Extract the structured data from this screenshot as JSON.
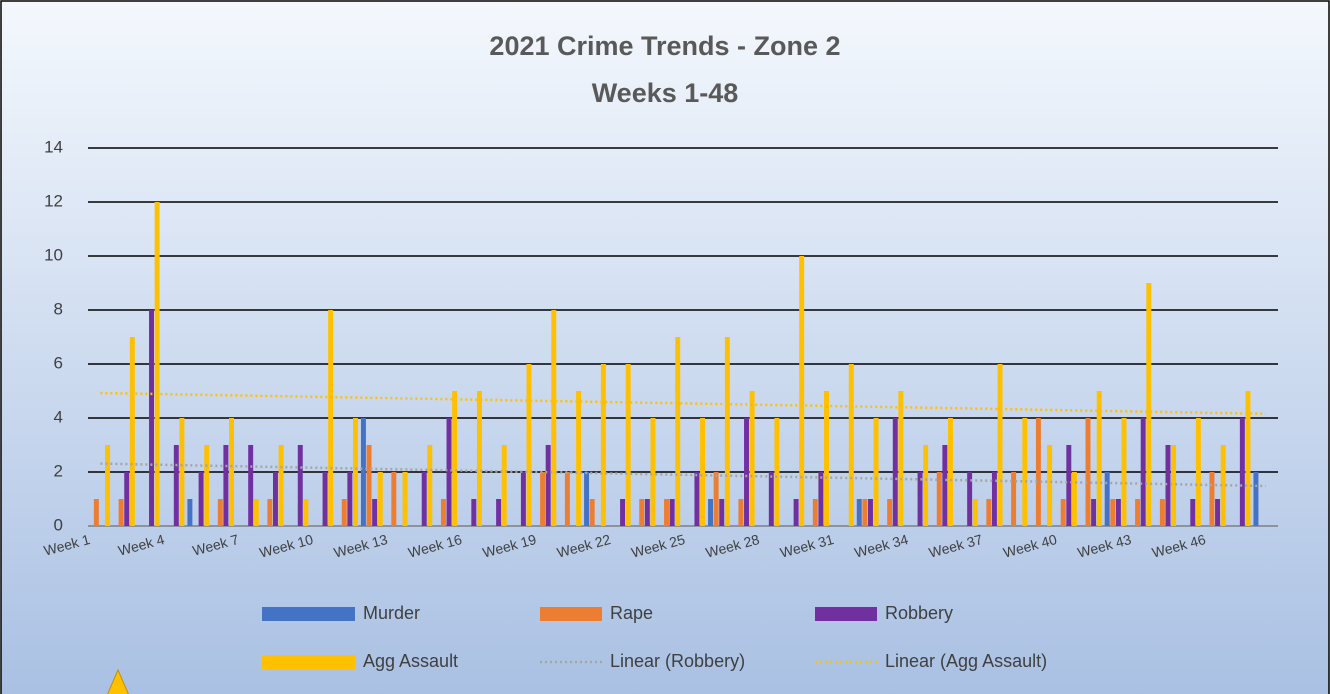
{
  "chart_data": {
    "type": "bar",
    "title": "2021 Crime Trends - Zone 2",
    "subtitle": "Weeks 1-48",
    "categories": [
      "Week 1",
      null,
      null,
      "Week 4",
      null,
      null,
      "Week 7",
      null,
      null,
      "Week 10",
      null,
      null,
      "Week 13",
      null,
      null,
      "Week 16",
      null,
      null,
      "Week 19",
      null,
      null,
      "Week 22",
      null,
      null,
      "Week 25",
      null,
      null,
      "Week 28",
      null,
      null,
      "Week 31",
      null,
      null,
      "Week 34",
      null,
      null,
      "Week 37",
      null,
      null,
      "Week 40",
      null,
      null,
      "Week 43",
      null,
      null,
      "Week 46",
      null,
      null
    ],
    "series": [
      {
        "name": "Murder",
        "color": "#4472c4",
        "values": [
          0,
          0,
          0,
          0,
          1,
          0,
          0,
          0,
          0,
          0,
          0,
          4,
          0,
          0,
          0,
          0,
          0,
          0,
          0,
          0,
          2,
          0,
          0,
          0,
          0,
          1,
          0,
          0,
          0,
          0,
          0,
          1,
          0,
          0,
          0,
          0,
          0,
          0,
          0,
          0,
          0,
          2,
          0,
          0,
          0,
          0,
          0,
          2
        ]
      },
      {
        "name": "Rape",
        "color": "#ed7d31",
        "values": [
          1,
          1,
          0,
          0,
          0,
          1,
          0,
          1,
          0,
          0,
          1,
          3,
          2,
          0,
          1,
          0,
          0,
          0,
          2,
          2,
          1,
          0,
          1,
          1,
          0,
          2,
          1,
          0,
          0,
          1,
          0,
          1,
          1,
          0,
          2,
          0,
          1,
          2,
          4,
          1,
          4,
          1,
          1,
          1,
          0,
          2,
          0,
          0
        ]
      },
      {
        "name": "Robbery",
        "color": "#7030a0",
        "values": [
          0,
          2,
          8,
          3,
          2,
          3,
          3,
          2,
          3,
          2,
          2,
          1,
          0,
          2,
          4,
          1,
          1,
          2,
          3,
          0,
          0,
          1,
          1,
          1,
          2,
          1,
          4,
          2,
          1,
          2,
          0,
          1,
          4,
          2,
          3,
          2,
          2,
          0,
          0,
          3,
          1,
          1,
          4,
          3,
          1,
          1,
          4,
          0
        ]
      },
      {
        "name": "Agg Assault",
        "color": "#ffc000",
        "values": [
          3,
          7,
          12,
          4,
          3,
          4,
          1,
          3,
          1,
          8,
          4,
          2,
          2,
          3,
          5,
          5,
          3,
          6,
          8,
          5,
          6,
          6,
          4,
          7,
          4,
          7,
          5,
          4,
          10,
          5,
          6,
          4,
          5,
          3,
          4,
          1,
          6,
          4,
          3,
          2,
          5,
          4,
          9,
          3,
          4,
          3,
          5,
          0
        ]
      }
    ],
    "trendlines": [
      {
        "name": "Linear (Robbery)",
        "series": 2,
        "color": "#a5a5a5"
      },
      {
        "name": "Linear (Agg Assault)",
        "series": 3,
        "color": "#ffc000"
      }
    ],
    "ylim": [
      0,
      14
    ],
    "yticks": [
      0,
      2,
      4,
      6,
      8,
      10,
      12,
      14
    ],
    "grid": true
  }
}
